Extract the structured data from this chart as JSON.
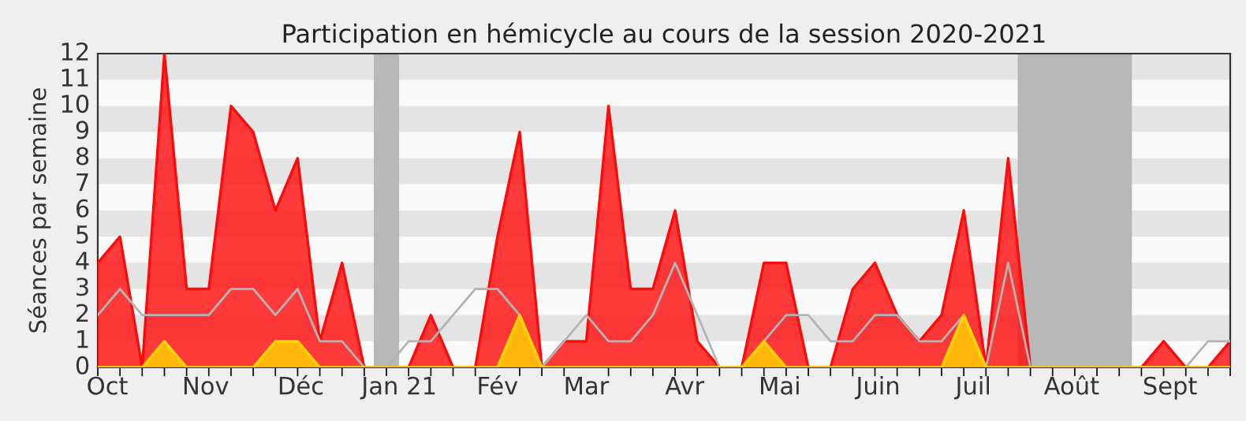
{
  "chart_data": {
    "type": "area",
    "title": "Participation en hémicycle au cours de la session 2020-2021",
    "ylabel": "Séances par semaine",
    "x": [
      "2020-09-28",
      "2020-10-05",
      "2020-10-12",
      "2020-10-19",
      "2020-10-26",
      "2020-11-02",
      "2020-11-09",
      "2020-11-16",
      "2020-11-23",
      "2020-11-30",
      "2020-12-07",
      "2020-12-14",
      "2020-12-21",
      "2020-12-28",
      "2021-01-04",
      "2021-01-11",
      "2021-01-18",
      "2021-01-25",
      "2021-02-01",
      "2021-02-08",
      "2021-02-15",
      "2021-02-22",
      "2021-03-01",
      "2021-03-08",
      "2021-03-15",
      "2021-03-22",
      "2021-03-29",
      "2021-04-05",
      "2021-04-12",
      "2021-04-19",
      "2021-04-26",
      "2021-05-03",
      "2021-05-10",
      "2021-05-17",
      "2021-05-24",
      "2021-05-31",
      "2021-06-07",
      "2021-06-14",
      "2021-06-21",
      "2021-06-28",
      "2021-07-05",
      "2021-07-12",
      "2021-07-19",
      "2021-07-26",
      "2021-08-02",
      "2021-08-09",
      "2021-08-16",
      "2021-08-23",
      "2021-08-30",
      "2021-09-06",
      "2021-09-13",
      "2021-09-20"
    ],
    "xlim": [
      "2020-09-28",
      "2021-09-20"
    ],
    "xticks": [
      {
        "value": "2020-10-01",
        "label": "Oct"
      },
      {
        "value": "2020-11-01",
        "label": "Nov"
      },
      {
        "value": "2020-12-01",
        "label": "Déc"
      },
      {
        "value": "2021-01-01",
        "label": "Jan 21"
      },
      {
        "value": "2021-02-01",
        "label": "Fév"
      },
      {
        "value": "2021-03-01",
        "label": "Mar"
      },
      {
        "value": "2021-04-01",
        "label": "Avr"
      },
      {
        "value": "2021-05-01",
        "label": "Mai"
      },
      {
        "value": "2021-06-01",
        "label": "Juin"
      },
      {
        "value": "2021-07-01",
        "label": "Juil"
      },
      {
        "value": "2021-08-01",
        "label": "Août"
      },
      {
        "value": "2021-09-01",
        "label": "Sept"
      }
    ],
    "bands": [
      {
        "axis": "x",
        "from": "2020-12-24",
        "to": "2021-01-01",
        "color": "#b8b8b8"
      },
      {
        "axis": "x",
        "from": "2021-07-15",
        "to": "2021-08-20",
        "color": "#b8b8b8"
      }
    ],
    "series": [
      {
        "type": "line",
        "color": "#b4b4b4",
        "values": [
          2,
          3,
          2,
          2,
          2,
          2,
          3,
          3,
          2,
          3,
          1,
          1,
          0,
          0,
          1,
          1,
          2,
          3,
          3,
          2,
          0,
          1,
          2,
          1,
          1,
          2,
          4,
          2,
          0,
          0,
          1,
          2,
          2,
          1,
          1,
          2,
          2,
          1,
          1,
          2,
          0,
          4,
          0,
          0,
          0,
          0,
          0,
          0,
          0,
          0,
          1,
          1
        ]
      },
      {
        "color": "#ff0a0a",
        "values": [
          4,
          5,
          0,
          12,
          3,
          3,
          10,
          9,
          6,
          8,
          1,
          4,
          0,
          0,
          0,
          2,
          0,
          0,
          5,
          9,
          0,
          1,
          1,
          10,
          3,
          3,
          6,
          1,
          0,
          0,
          4,
          4,
          0,
          0,
          3,
          4,
          2,
          1,
          2,
          6,
          0,
          8,
          0,
          0,
          0,
          0,
          0,
          0,
          1,
          0,
          0,
          1
        ]
      },
      {
        "color": "#ffd700",
        "values": [
          0,
          0,
          0,
          1,
          0,
          0,
          0,
          0,
          1,
          1,
          0,
          0,
          0,
          0,
          0,
          0,
          0,
          0,
          0,
          2,
          0,
          0,
          0,
          0,
          0,
          0,
          0,
          0,
          0,
          0,
          1,
          0,
          0,
          0,
          0,
          0,
          0,
          0,
          0,
          2,
          0,
          0,
          0,
          0,
          0,
          0,
          0,
          0,
          0,
          0,
          0,
          0
        ]
      }
    ],
    "ylim": [
      0,
      12
    ],
    "yticks": [
      0,
      1,
      2,
      3,
      4,
      5,
      6,
      7,
      8,
      9,
      10,
      11,
      12
    ],
    "legend": false
  }
}
